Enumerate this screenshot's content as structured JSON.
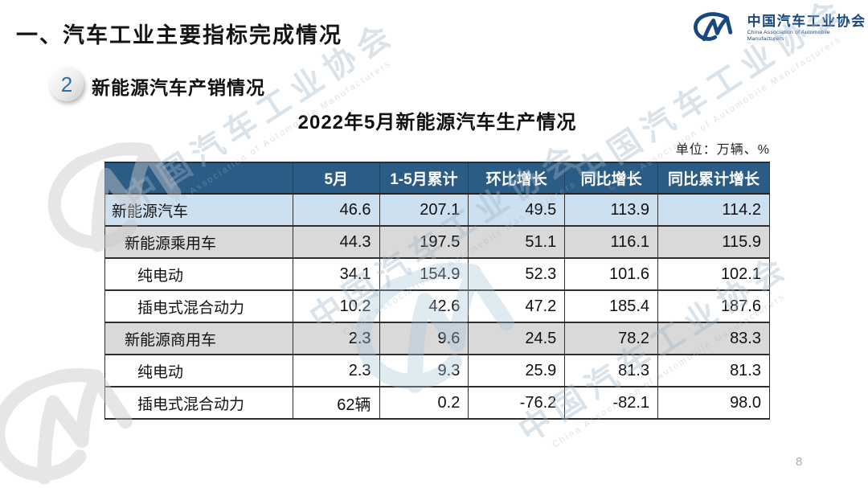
{
  "page": {
    "title": "一、汽车工业主要指标完成情况",
    "page_number": "8"
  },
  "logo": {
    "name_cn": "中国汽车工业协会",
    "name_en": "China Association of Automobile Manufacturers"
  },
  "section": {
    "badge": "2",
    "title": "新能源汽车产销情况"
  },
  "table_title": "2022年5月新能源汽车生产情况",
  "unit_label": "单位：万辆、%",
  "colors": {
    "header_bg": "#2b5c85",
    "highlight_row": "#cde0f0",
    "subtotal_row": "#d9d9d9",
    "logo_blue": "#17497e",
    "watermark": "#9fb6c9"
  },
  "chart_data": {
    "type": "table",
    "columns": [
      "",
      "5月",
      "1-5月累计",
      "环比增长",
      "同比增长",
      "同比累计增长"
    ],
    "rows": [
      {
        "label": "新能源汽车",
        "indent": 0,
        "style": "highlight",
        "values": [
          "46.6",
          "207.1",
          "49.5",
          "113.9",
          "114.2"
        ]
      },
      {
        "label": "新能源乘用车",
        "indent": 1,
        "style": "subtotal",
        "values": [
          "44.3",
          "197.5",
          "51.1",
          "116.1",
          "115.9"
        ]
      },
      {
        "label": "纯电动",
        "indent": 2,
        "style": "plain",
        "values": [
          "34.1",
          "154.9",
          "52.3",
          "101.6",
          "102.1"
        ]
      },
      {
        "label": "插电式混合动力",
        "indent": 2,
        "style": "plain",
        "values": [
          "10.2",
          "42.6",
          "47.2",
          "185.4",
          "187.6"
        ]
      },
      {
        "label": "新能源商用车",
        "indent": 1,
        "style": "subtotal",
        "values": [
          "2.3",
          "9.6",
          "24.5",
          "78.2",
          "83.3"
        ]
      },
      {
        "label": "纯电动",
        "indent": 2,
        "style": "plain",
        "values": [
          "2.3",
          "9.3",
          "25.9",
          "81.3",
          "81.3"
        ]
      },
      {
        "label": "插电式混合动力",
        "indent": 2,
        "style": "plain",
        "values": [
          "62辆",
          "0.2",
          "-76.2",
          "-82.1",
          "98.0"
        ]
      }
    ]
  }
}
